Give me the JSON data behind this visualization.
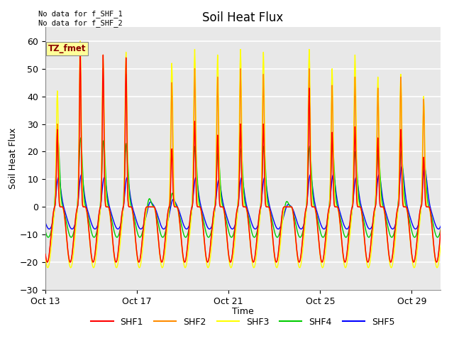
{
  "title": "Soil Heat Flux",
  "xlabel": "Time",
  "ylabel": "Soil Heat Flux",
  "ylim": [
    -30,
    65
  ],
  "yticks": [
    -30,
    -20,
    -10,
    0,
    10,
    20,
    30,
    40,
    50,
    60
  ],
  "xtick_days": [
    13,
    17,
    21,
    25,
    29
  ],
  "xtick_labels": [
    "Oct 13",
    "Oct 17",
    "Oct 21",
    "Oct 25",
    "Oct 29"
  ],
  "colors": {
    "SHF1": "#ff0000",
    "SHF2": "#ff8c00",
    "SHF3": "#ffff00",
    "SHF4": "#00cc00",
    "SHF5": "#0000ff"
  },
  "annotation_text": "TZ_fmet",
  "annotation_color": "#8b0000",
  "annotation_bg": "#ffff99",
  "top_left_text": "No data for f_SHF_1\nNo data for f_SHF_2",
  "background_color": "#ffffff",
  "plot_bg_color": "#e8e8e8",
  "grid_color": "#ffffff",
  "linewidth": 1.0,
  "title_fontsize": 12,
  "label_fontsize": 9,
  "tick_fontsize": 9,
  "legend_fontsize": 9
}
